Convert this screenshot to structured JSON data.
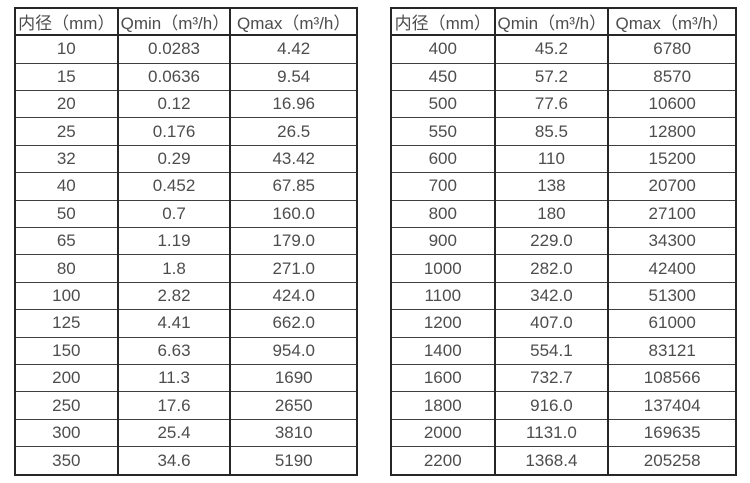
{
  "page": {
    "background": "#ffffff",
    "text_color": "#4d4d4d",
    "border_color": "#262626"
  },
  "tables": [
    {
      "name": "flow-rate-table-small-diameters",
      "columns": [
        "内径（mm）",
        "Qmin（m³/h）",
        "Qmax（m³/h）"
      ],
      "rows": [
        [
          "10",
          "0.0283",
          "4.42"
        ],
        [
          "15",
          "0.0636",
          "9.54"
        ],
        [
          "20",
          "0.12",
          "16.96"
        ],
        [
          "25",
          "0.176",
          "26.5"
        ],
        [
          "32",
          "0.29",
          "43.42"
        ],
        [
          "40",
          "0.452",
          "67.85"
        ],
        [
          "50",
          "0.7",
          "160.0"
        ],
        [
          "65",
          "1.19",
          "179.0"
        ],
        [
          "80",
          "1.8",
          "271.0"
        ],
        [
          "100",
          "2.82",
          "424.0"
        ],
        [
          "125",
          "4.41",
          "662.0"
        ],
        [
          "150",
          "6.63",
          "954.0"
        ],
        [
          "200",
          "11.3",
          "1690"
        ],
        [
          "250",
          "17.6",
          "2650"
        ],
        [
          "300",
          "25.4",
          "3810"
        ],
        [
          "350",
          "34.6",
          "5190"
        ]
      ]
    },
    {
      "name": "flow-rate-table-large-diameters",
      "columns": [
        "内径（mm）",
        "Qmin（m³/h）",
        "Qmax（m³/h）"
      ],
      "rows": [
        [
          "400",
          "45.2",
          "6780"
        ],
        [
          "450",
          "57.2",
          "8570"
        ],
        [
          "500",
          "77.6",
          "10600"
        ],
        [
          "550",
          "85.5",
          "12800"
        ],
        [
          "600",
          "110",
          "15200"
        ],
        [
          "700",
          "138",
          "20700"
        ],
        [
          "800",
          "180",
          "27100"
        ],
        [
          "900",
          "229.0",
          "34300"
        ],
        [
          "1000",
          "282.0",
          "42400"
        ],
        [
          "1100",
          "342.0",
          "51300"
        ],
        [
          "1200",
          "407.0",
          "61000"
        ],
        [
          "1400",
          "554.1",
          "83121"
        ],
        [
          "1600",
          "732.7",
          "108566"
        ],
        [
          "1800",
          "916.0",
          "137404"
        ],
        [
          "2000",
          "1131.0",
          "169635"
        ],
        [
          "2200",
          "1368.4",
          "205258"
        ]
      ]
    }
  ]
}
